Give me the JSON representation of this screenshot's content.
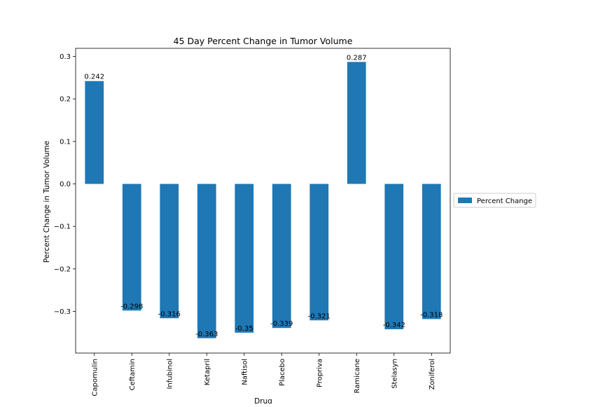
{
  "chart_data": {
    "type": "bar",
    "title": "45 Day Percent Change in Tumor Volume",
    "xlabel": "Drug",
    "ylabel": "Percent Change in Tumor Volume",
    "categories": [
      "Capomulin",
      "Ceftamin",
      "Infubinol",
      "Ketapril",
      "Naftisol",
      "Placebo",
      "Propriva",
      "Ramicane",
      "Stelasyn",
      "Zoniferol"
    ],
    "series": [
      {
        "name": "Percent Change",
        "color": "#1f77b4",
        "values": [
          0.242,
          -0.298,
          -0.316,
          -0.363,
          -0.35,
          -0.339,
          -0.321,
          0.287,
          -0.342,
          -0.318
        ]
      }
    ],
    "data_labels": [
      "0.242",
      "-0.298",
      "-0.316",
      "-0.363",
      "-0.35",
      "-0.339",
      "-0.321",
      "0.287",
      "-0.342",
      "-0.318"
    ],
    "yticks": [
      0.3,
      0.2,
      0.1,
      0.0,
      -0.1,
      -0.2,
      -0.3
    ],
    "ytick_labels": [
      "0.3",
      "0.2",
      "0.1",
      "0.0",
      "−0.1",
      "−0.2",
      "−0.3"
    ],
    "ylim": [
      -0.398,
      0.319
    ],
    "grid": false,
    "legend": {
      "placement": "outside-right",
      "entries": [
        "Percent Change"
      ]
    }
  }
}
